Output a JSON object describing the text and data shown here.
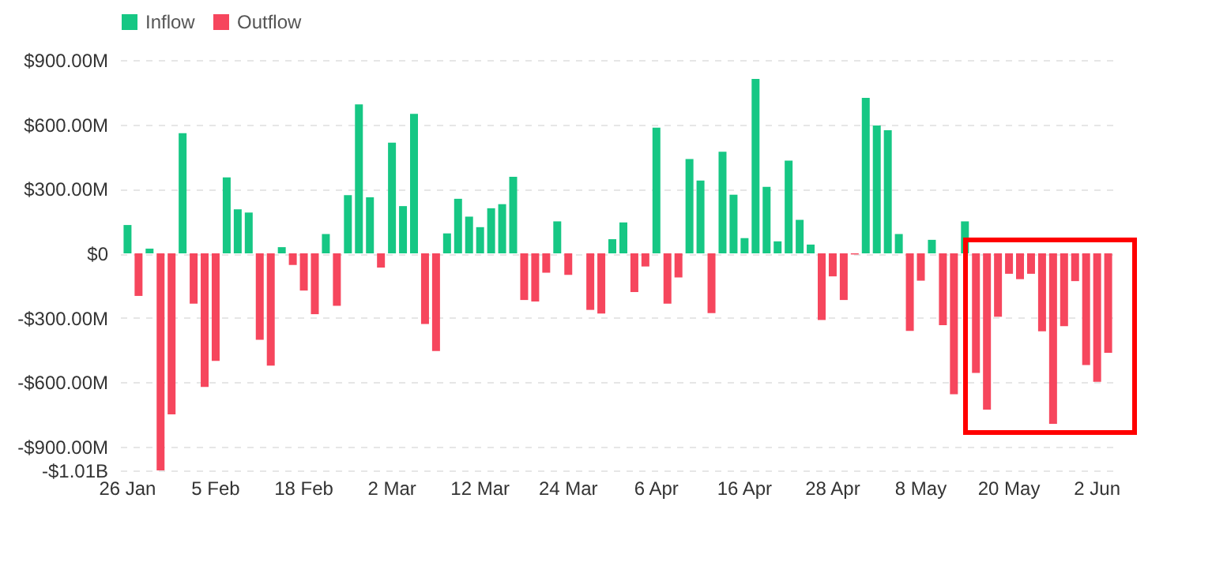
{
  "chart_data": {
    "type": "bar",
    "categories": [
      "26 Jan",
      null,
      null,
      null,
      null,
      null,
      null,
      null,
      "5 Feb",
      null,
      null,
      null,
      null,
      null,
      null,
      null,
      "18 Feb",
      null,
      null,
      null,
      null,
      null,
      null,
      null,
      "2 Mar",
      null,
      null,
      null,
      null,
      null,
      null,
      null,
      "12 Mar",
      null,
      null,
      null,
      null,
      null,
      null,
      null,
      "24 Mar",
      null,
      null,
      null,
      null,
      null,
      null,
      null,
      "6 Apr",
      null,
      null,
      null,
      null,
      null,
      null,
      null,
      "16 Apr",
      null,
      null,
      null,
      null,
      null,
      null,
      null,
      "28 Apr",
      null,
      null,
      null,
      null,
      null,
      null,
      null,
      "8 May",
      null,
      null,
      null,
      null,
      null,
      null,
      null,
      "20 May",
      null,
      null,
      null,
      null,
      null,
      null,
      null,
      "2 Jun",
      null
    ],
    "series": [
      {
        "name": "Inflow",
        "color": "#16c784",
        "values": [
          132000000.0,
          null,
          22000000.0,
          null,
          null,
          559000000.0,
          null,
          null,
          null,
          354000000.0,
          205000000.0,
          190000000.0,
          null,
          null,
          29000000.0,
          null,
          null,
          null,
          90000000.0,
          null,
          271000000.0,
          693000000.0,
          261000000.0,
          null,
          515000000.0,
          220000000.0,
          649000000.0,
          null,
          null,
          93000000.0,
          254000000.0,
          171000000.0,
          122000000.0,
          210000000.0,
          229000000.0,
          356000000.0,
          null,
          null,
          null,
          149000000.0,
          null,
          null,
          null,
          null,
          66000000.0,
          144000000.0,
          null,
          null,
          585000000.0,
          null,
          null,
          439000000.0,
          339000000.0,
          null,
          473000000.0,
          273000000.0,
          71000000.0,
          812000000.0,
          310000000.0,
          56000000.0,
          432000000.0,
          156000000.0,
          41000000.0,
          null,
          null,
          null,
          null,
          724000000.0,
          595000000.0,
          573000000.0,
          90000000.0,
          null,
          null,
          63000000.0,
          null,
          null,
          149000000.0,
          null,
          null,
          null,
          null,
          null,
          null,
          null,
          null,
          null,
          null,
          null,
          null,
          null
        ]
      },
      {
        "name": "Outflow",
        "color": "#f6465d",
        "values": [
          null,
          -198000000.0,
          null,
          -1010000000.0,
          -749000000.0,
          null,
          -234000000.0,
          -622000000.0,
          -500000000.0,
          null,
          null,
          null,
          -402000000.0,
          -522000000.0,
          null,
          -54000000.0,
          -173000000.0,
          -283000000.0,
          null,
          -244000000.0,
          null,
          null,
          null,
          -66000000.0,
          null,
          null,
          null,
          -329000000.0,
          -454000000.0,
          null,
          null,
          null,
          null,
          null,
          null,
          null,
          -217000000.0,
          -224000000.0,
          -90000000.0,
          null,
          -100000000.0,
          null,
          -263000000.0,
          -280000000.0,
          null,
          null,
          -180000000.0,
          -61000000.0,
          null,
          -234000000.0,
          -112000000.0,
          null,
          null,
          -278000000.0,
          null,
          null,
          null,
          null,
          null,
          null,
          null,
          null,
          null,
          -310000000.0,
          -107000000.0,
          -217000000.0,
          -5000000.0,
          null,
          null,
          null,
          null,
          -361000000.0,
          -127000000.0,
          null,
          -334000000.0,
          -656000000.0,
          null,
          -556000000.0,
          -727000000.0,
          -295000000.0,
          -95000000.0,
          -120000000.0,
          -95000000.0,
          -363000000.0,
          -793000000.0,
          -339000000.0,
          -129000000.0,
          -520000000.0,
          -598000000.0,
          -463000000.0
        ]
      }
    ],
    "ylim": [
      -1010000000.0,
      900000000.0
    ],
    "yticks": [
      {
        "value": 900000000.0,
        "label": "$900.00M"
      },
      {
        "value": 600000000.0,
        "label": "$600.00M"
      },
      {
        "value": 300000000.0,
        "label": "$300.00M"
      },
      {
        "value": 0,
        "label": "$0"
      },
      {
        "value": -300000000.0,
        "label": "-$300.00M"
      },
      {
        "value": -600000000.0,
        "label": "-$600.00M"
      },
      {
        "value": -900000000.0,
        "label": "-$900.00M"
      },
      {
        "value": -1010000000.0,
        "label": "-$1.01B"
      }
    ],
    "grid": "y",
    "legend": "top"
  }
}
